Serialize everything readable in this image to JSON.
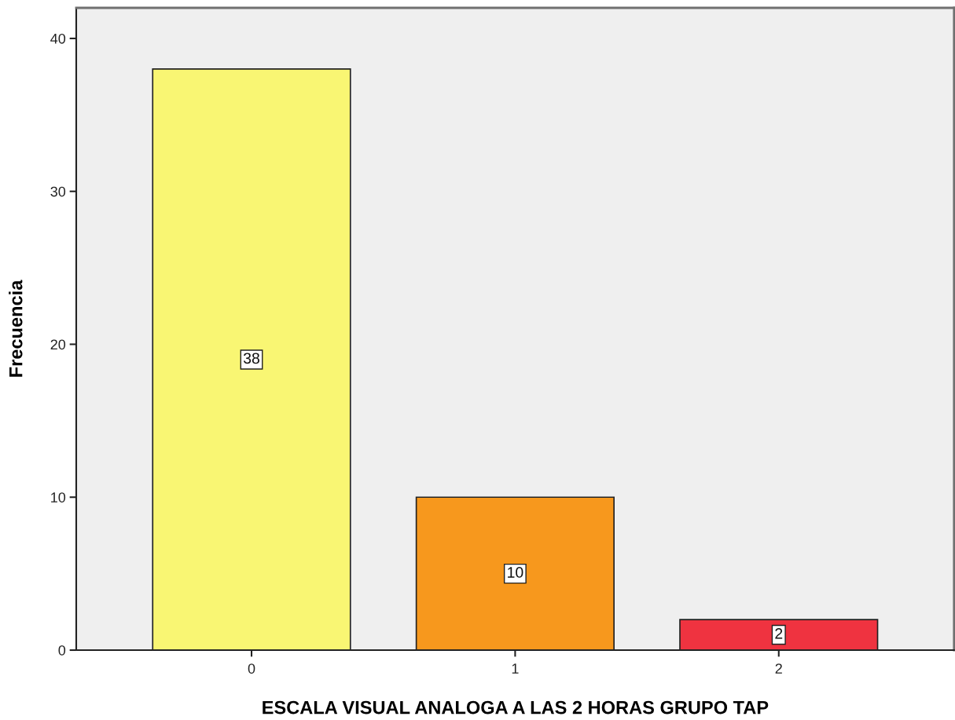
{
  "chart_data": {
    "type": "bar",
    "xlabel": "ESCALA VISUAL ANALOGA A LAS 2 HORAS GRUPO TAP",
    "ylabel": "Frecuencia",
    "categories": [
      "0",
      "1",
      "2"
    ],
    "values": [
      38,
      10,
      2
    ],
    "colors": [
      "#f9f673",
      "#f7981d",
      "#ef3340"
    ],
    "ylim": [
      0,
      42
    ],
    "yticks": [
      0,
      10,
      20,
      30,
      40
    ],
    "grid": false,
    "legend": false,
    "data_labels": true
  }
}
